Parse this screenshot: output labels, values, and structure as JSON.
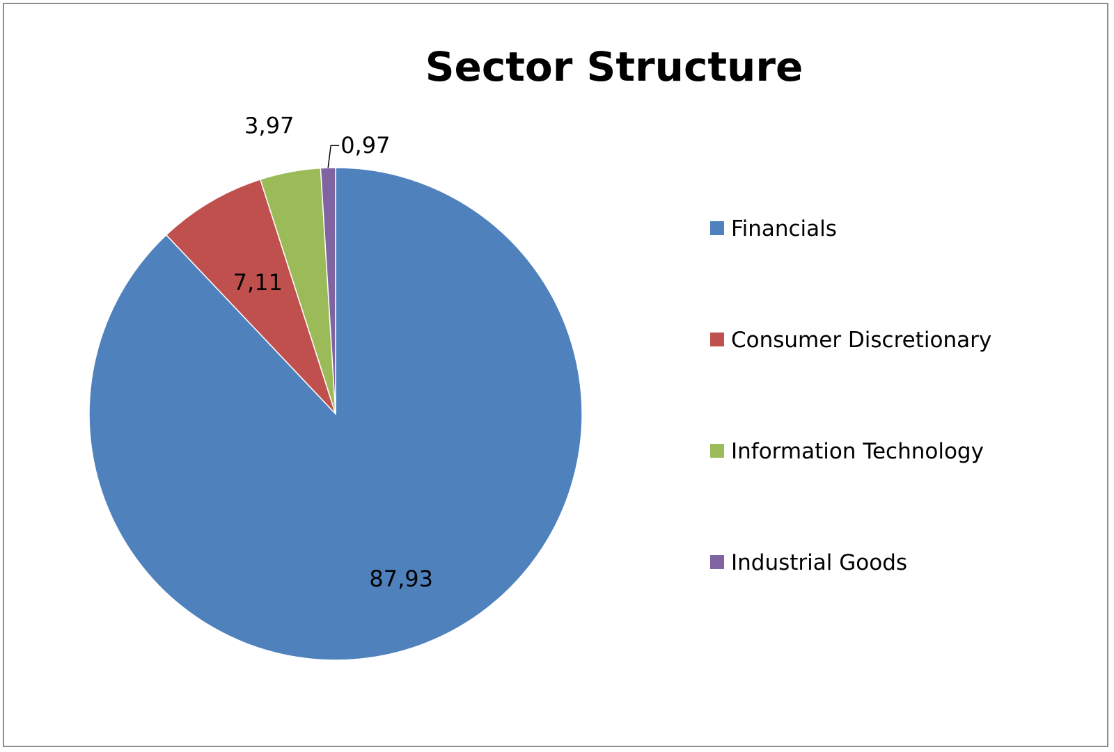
{
  "chart_data": {
    "type": "pie",
    "title": "Sector Structure",
    "start_angle_deg": 0,
    "direction": "clockwise",
    "legend_position": "right",
    "slices": [
      {
        "label": "Financials",
        "value": 87.93,
        "display": "87,93",
        "color": "#4F81BD"
      },
      {
        "label": "Consumer Discretionary",
        "value": 7.11,
        "display": "7,11",
        "color": "#C0504D"
      },
      {
        "label": "Information Technology",
        "value": 3.97,
        "display": "3,97",
        "color": "#9BBB59"
      },
      {
        "label": "Industrial Goods",
        "value": 0.97,
        "display": "0,97",
        "color": "#8064A2"
      }
    ]
  }
}
